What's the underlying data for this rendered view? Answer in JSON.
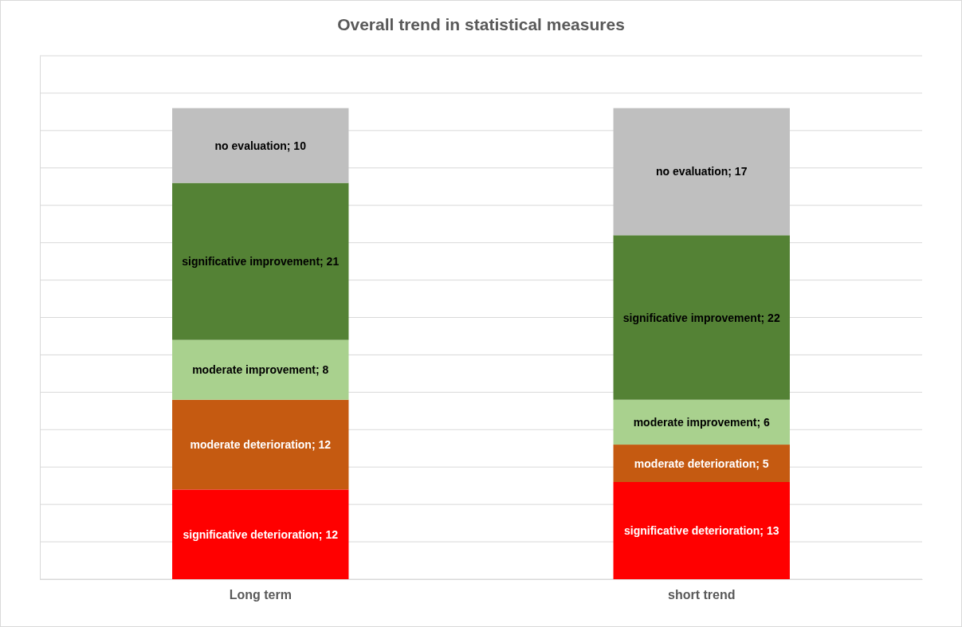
{
  "chart_data": {
    "type": "bar",
    "title": "Overall trend in statistical measures",
    "categories": [
      "Long term",
      "short trend"
    ],
    "stacked": true,
    "ylim": [
      0,
      70
    ],
    "yticks": [
      {
        "value": 0,
        "label": null
      },
      {
        "value": 5,
        "label": null
      },
      {
        "value": 10,
        "label": null
      },
      {
        "value": 15,
        "label": null
      },
      {
        "value": 20,
        "label": null
      },
      {
        "value": 25,
        "label": null
      },
      {
        "value": 30,
        "label": null
      },
      {
        "value": 35,
        "label": null
      },
      {
        "value": 40,
        "label": null
      },
      {
        "value": 45,
        "label": null
      },
      {
        "value": 50,
        "label": null
      },
      {
        "value": 55,
        "label": null
      },
      {
        "value": 60,
        "label": null
      },
      {
        "value": 65,
        "label": null
      },
      {
        "value": 70,
        "label": null
      }
    ],
    "grid": "y",
    "tick_labels": "x",
    "series": [
      {
        "color": "#ff0000",
        "values": [
          12,
          13
        ],
        "value_labels": [
          "significative deterioration; 12",
          "significative deterioration; 13"
        ]
      },
      {
        "color": "#c55a11",
        "values": [
          12,
          5
        ],
        "value_labels": [
          "moderate deterioration; 12",
          "moderate deterioration; 5"
        ]
      },
      {
        "color": "#a9d18e",
        "values": [
          8,
          6
        ],
        "value_labels": [
          "moderate improvement; 8",
          "moderate improvement; 6"
        ]
      },
      {
        "color": "#548235",
        "values": [
          21,
          22
        ],
        "value_labels": [
          "significative improvement; 21",
          "significative improvement; 22"
        ]
      },
      {
        "color": "#bfbfbf",
        "values": [
          10,
          17
        ],
        "value_labels": [
          "no evaluation; 10",
          "no evaluation; 17"
        ]
      }
    ]
  }
}
